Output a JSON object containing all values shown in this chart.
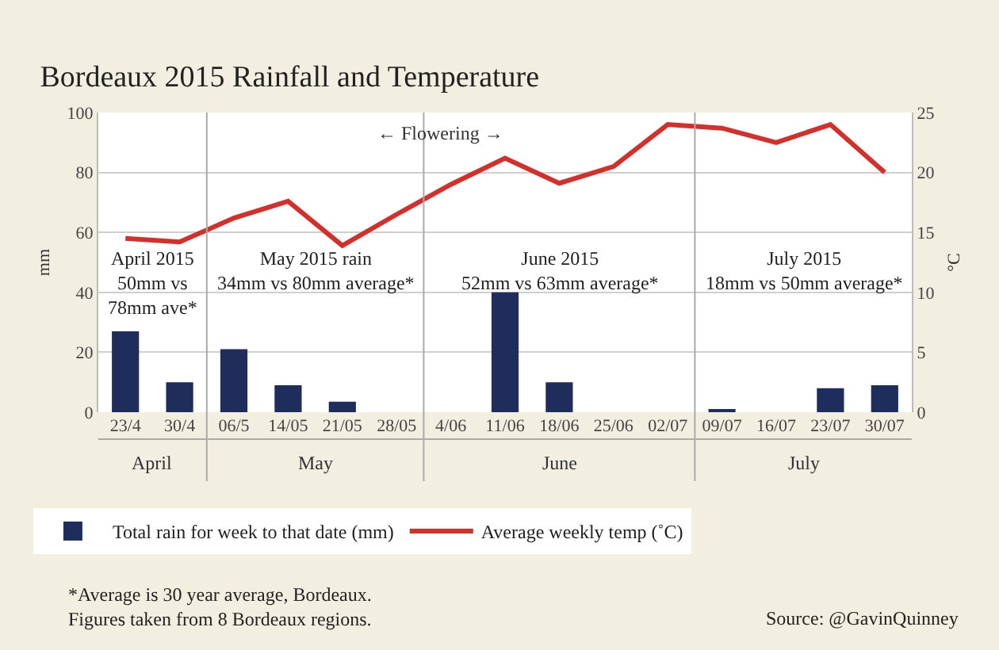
{
  "chart_data": {
    "type": "bar",
    "title": "Bordeaux 2015 Rainfall and Temperature",
    "categories": [
      "23/4",
      "30/4",
      "06/5",
      "14/05",
      "21/05",
      "28/05",
      "4/06",
      "11/06",
      "18/06",
      "25/06",
      "02/07",
      "09/07",
      "16/07",
      "23/07",
      "30/07"
    ],
    "series": [
      {
        "name": "Total rain for week to that date (mm)",
        "color": "#1f2d5c",
        "values": [
          27,
          10,
          21,
          9,
          3.5,
          0,
          0,
          40,
          10,
          0,
          0,
          1,
          0,
          8,
          9
        ]
      },
      {
        "name": "Average weekly temp (˚C)",
        "type": "line",
        "axis": "y2",
        "color": "#d42f2a",
        "values": [
          14.5,
          14.2,
          16.2,
          17.6,
          13.9,
          16.5,
          19.0,
          21.2,
          19.1,
          20.5,
          24.0,
          23.7,
          22.5,
          24.0,
          20.0
        ]
      }
    ],
    "ylabel": "mm",
    "y2label": "°C",
    "ylim": [
      0,
      100
    ],
    "yticks": [
      0,
      20,
      40,
      60,
      80,
      100
    ],
    "y2lim": [
      0,
      25
    ],
    "y2ticks": [
      0,
      5,
      10,
      15,
      20,
      25
    ],
    "grid": "y",
    "legend": "bottom",
    "marker": "none",
    "line_style": "solid",
    "annotations": [
      "April",
      "May",
      "June",
      "July",
      "April 2015\n50mm vs\n78mm ave*",
      "May 2015 rain\n34mm vs 80mm average*",
      "June 2015\n52mm vs 63mm average*",
      "July 2015\n18mm vs 50mm average*",
      "← Flowering →",
      "*Average is 30 year average, Bordeaux.\nFigures taken from 8 Bordeaux regions.",
      "Source: @GavinQuinney"
    ]
  }
}
